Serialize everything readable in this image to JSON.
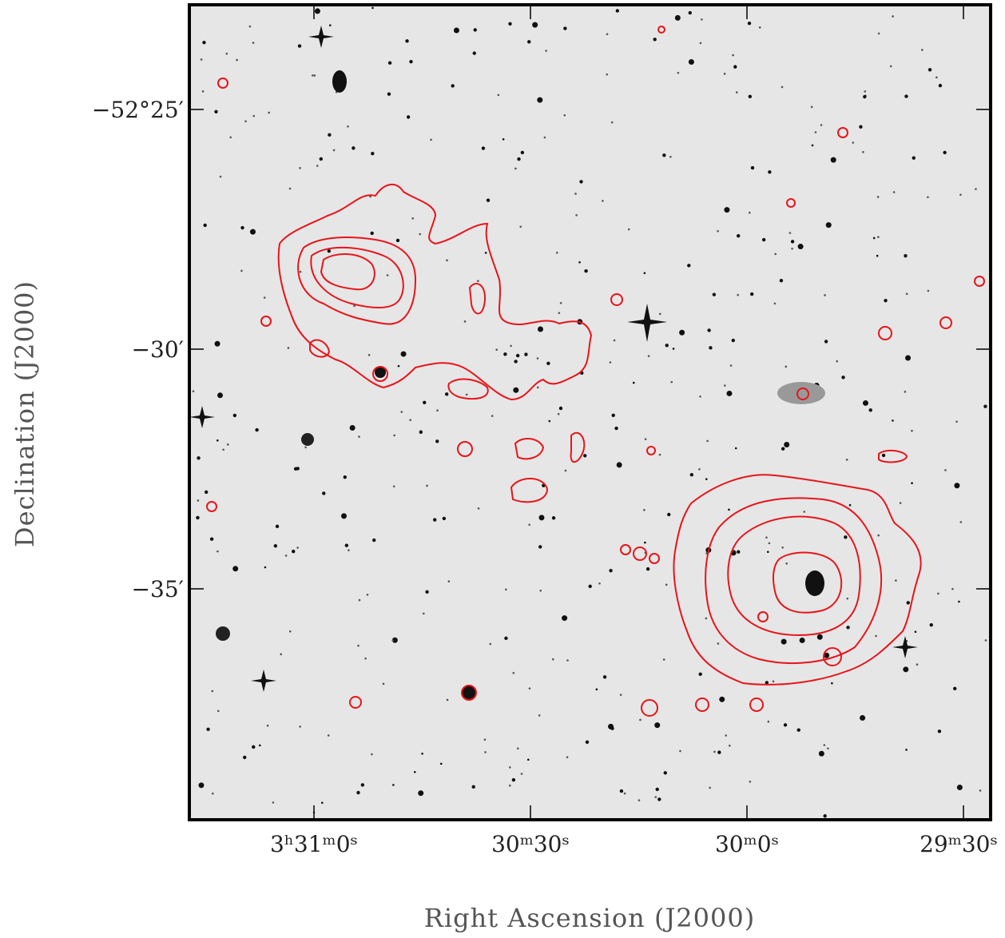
{
  "figure": {
    "y_label": "Declination (J2000)",
    "x_label": "Right Ascension (J2000)",
    "y_ticks": [
      "−52°25′",
      "−30′",
      "−35′"
    ],
    "x_ticks": [
      "3ʰ31ᵐ0ˢ",
      "30ᵐ30ˢ",
      "30ᵐ0ˢ",
      "29ᵐ30ˢ"
    ]
  }
}
